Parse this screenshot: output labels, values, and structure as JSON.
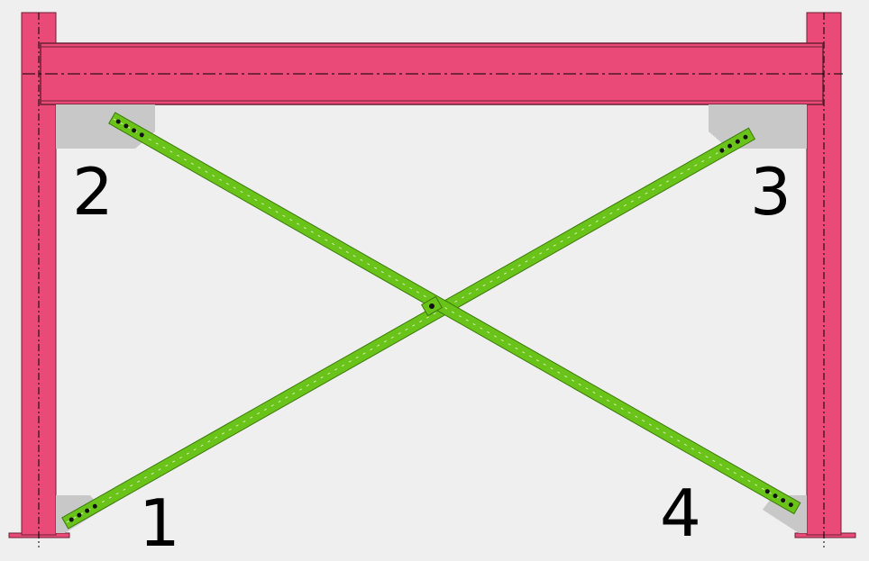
{
  "colors": {
    "background": "#efefef",
    "member": "#ea4a77",
    "member_edge": "#6b2035",
    "brace": "#6ac318",
    "brace_edge": "#3c7a0c",
    "gusset": "#c8c8c8",
    "bolt": "#111111"
  },
  "connection_labels": [
    "1",
    "2",
    "3",
    "4"
  ]
}
